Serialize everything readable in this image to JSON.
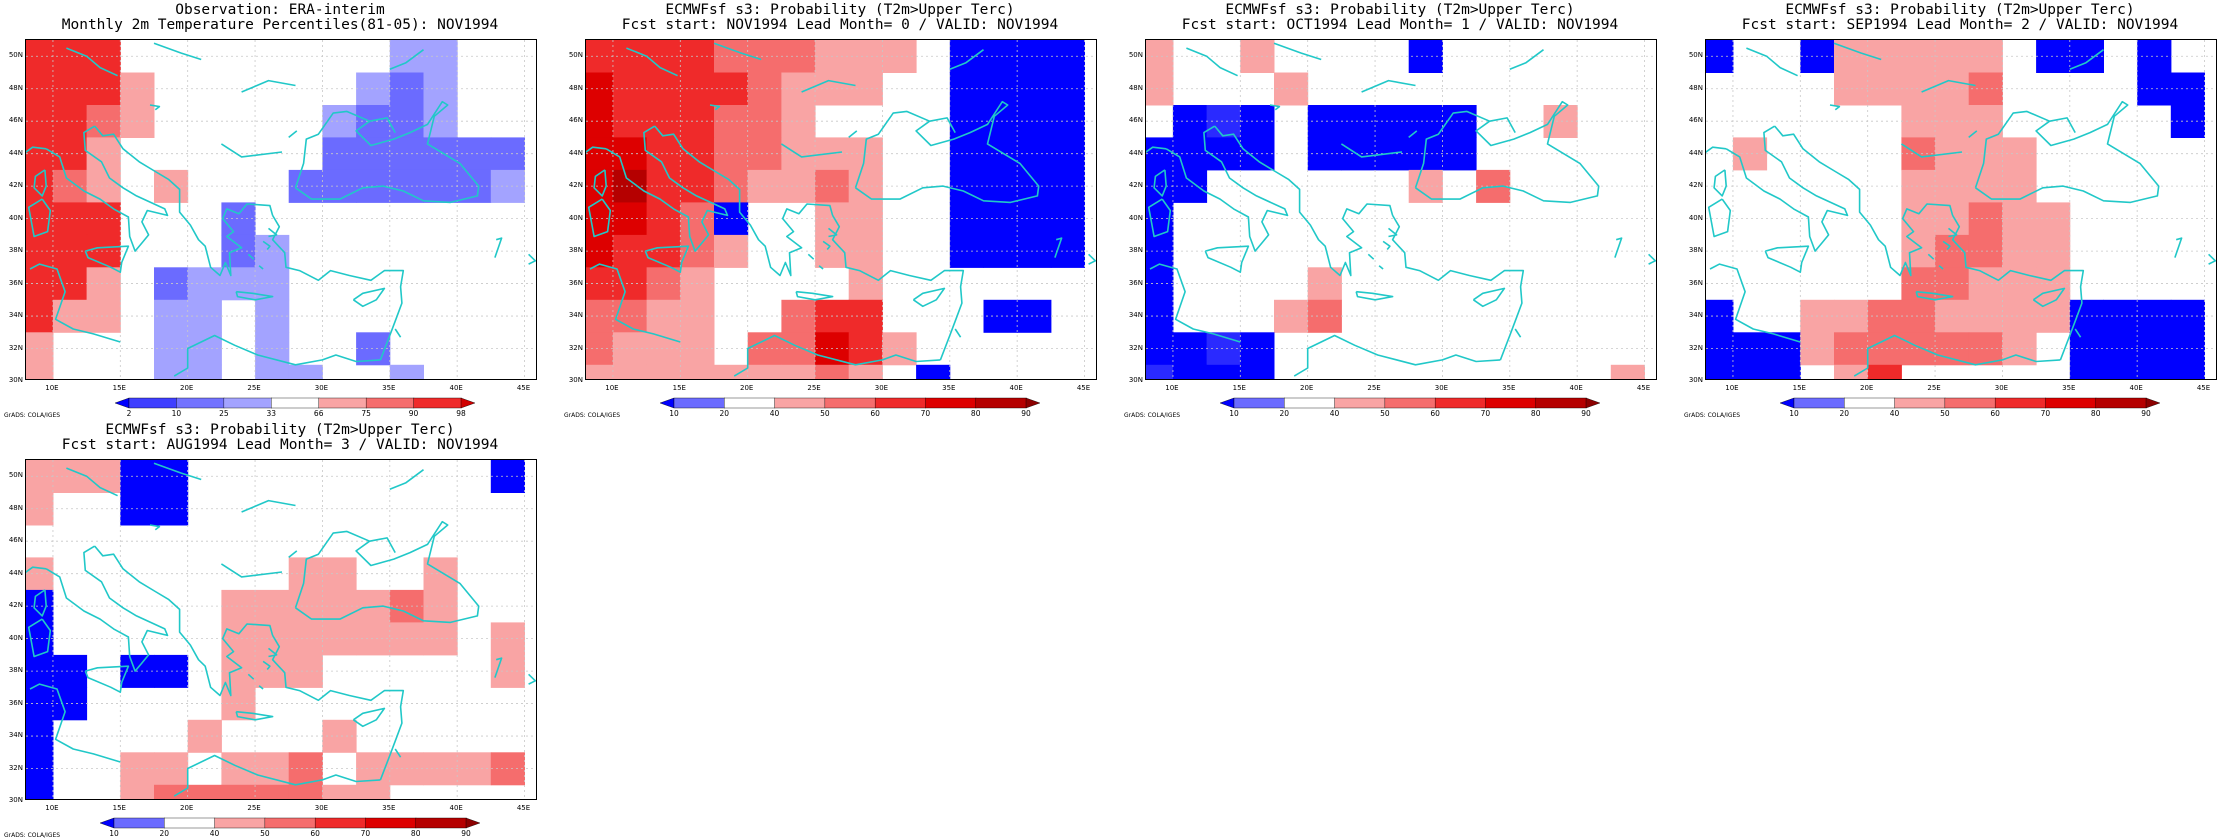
{
  "credit": "GrADS: COLA/IGES",
  "lat_labels": [
    "30N",
    "32N",
    "34N",
    "36N",
    "38N",
    "40N",
    "42N",
    "44N",
    "46N",
    "48N",
    "50N"
  ],
  "lon_labels": [
    "10E",
    "15E",
    "20E",
    "25E",
    "30E",
    "35E",
    "40E",
    "45E"
  ],
  "extent": {
    "lon_range": [
      8,
      46
    ],
    "lat_range": [
      30,
      51
    ],
    "cell_deg": 2.5
  },
  "colors": {
    "palette": {
      "b3": "#0000ff",
      "b2": "#2a2aff",
      "b1": "#6b6bff",
      "b0": "#a3a3ff",
      "r1": "#f9a4a4",
      "r2": "#f56d6d",
      "r3": "#ef2a2a",
      "r4": "#dd0000",
      "r5": "#b50000"
    },
    "coast": "#21c8c8",
    "grid": "#c8c8c8"
  },
  "panels": [
    {
      "title1": "Observation: ERA-interim",
      "title2": "Monthly 2m Temperature Percentiles(81-05): NOV1994",
      "colorbar": {
        "labels": [
          "2",
          "10",
          "25",
          "33",
          "66",
          "75",
          "90",
          "98"
        ],
        "colors": [
          "#0000ff",
          "#3f3fff",
          "#7373ff",
          "#a3a3ff",
          "#ffffff",
          "#f9a4a4",
          "#f56d6d",
          "#ef2a2a",
          "#d00000"
        ]
      },
      "map": [
        "rrrr.........b0b0.",
        "rrrrr.......b0b1b0",
        "rrrss.......b0b1b0..",
        "rrss....b1b1b1b1b1b1",
        "rrs.s....b1b1b1b1b0",
        "rrr....b1......",
        "rrr.....b1.....",
        "rrs...b1b0.b0..",
        "rss...b0b0.b0..",
        "s.....b0b0.b0b1..",
        "s.....b0...b0b0.."
      ],
      "chart_data": {
        "type": "heatmap",
        "rows_lat_from": "50N",
        "rows_lat_to": "30N"
      }
    },
    {
      "title1": "ECMWFsf s3: Probability (T2m>Upper Terc)",
      "title2": "Fcst start: NOV1994   Lead Month= 0 / VALID: NOV1994",
      "colorbar": {
        "labels": [
          "10",
          "20",
          "40",
          "50",
          "60",
          "70",
          "80",
          "90"
        ],
        "colors": [
          "#0000ff",
          "#6b6bff",
          "#ffffff",
          "#f9a4a4",
          "#f56d6d",
          "#ef2a2a",
          "#dd0000",
          "#b50000",
          "#8b0000"
        ]
      }
    },
    {
      "title1": "ECMWFsf s3: Probability (T2m>Upper Terc)",
      "title2": "Fcst start: OCT1994   Lead Month= 1 / VALID: NOV1994",
      "colorbar": {
        "labels": [
          "10",
          "20",
          "40",
          "50",
          "60",
          "70",
          "80",
          "90"
        ],
        "colors": [
          "#0000ff",
          "#6b6bff",
          "#ffffff",
          "#f9a4a4",
          "#f56d6d",
          "#ef2a2a",
          "#dd0000",
          "#b50000",
          "#8b0000"
        ]
      }
    },
    {
      "title1": "ECMWFsf s3: Probability (T2m>Upper Terc)",
      "title2": "Fcst start: SEP1994   Lead Month= 2 / VALID: NOV1994",
      "colorbar": {
        "labels": [
          "10",
          "20",
          "40",
          "50",
          "60",
          "70",
          "80",
          "90"
        ],
        "colors": [
          "#0000ff",
          "#6b6bff",
          "#ffffff",
          "#f9a4a4",
          "#f56d6d",
          "#ef2a2a",
          "#dd0000",
          "#b50000",
          "#8b0000"
        ]
      }
    },
    {
      "title1": "ECMWFsf s3: Probability (T2m>Upper Terc)",
      "title2": "Fcst start: AUG1994   Lead Month= 3 / VALID: NOV1994",
      "colorbar": {
        "labels": [
          "10",
          "20",
          "40",
          "50",
          "60",
          "70",
          "80",
          "90"
        ],
        "colors": [
          "#0000ff",
          "#6b6bff",
          "#ffffff",
          "#f9a4a4",
          "#f56d6d",
          "#ef2a2a",
          "#dd0000",
          "#b50000",
          "#8b0000"
        ]
      }
    }
  ]
}
